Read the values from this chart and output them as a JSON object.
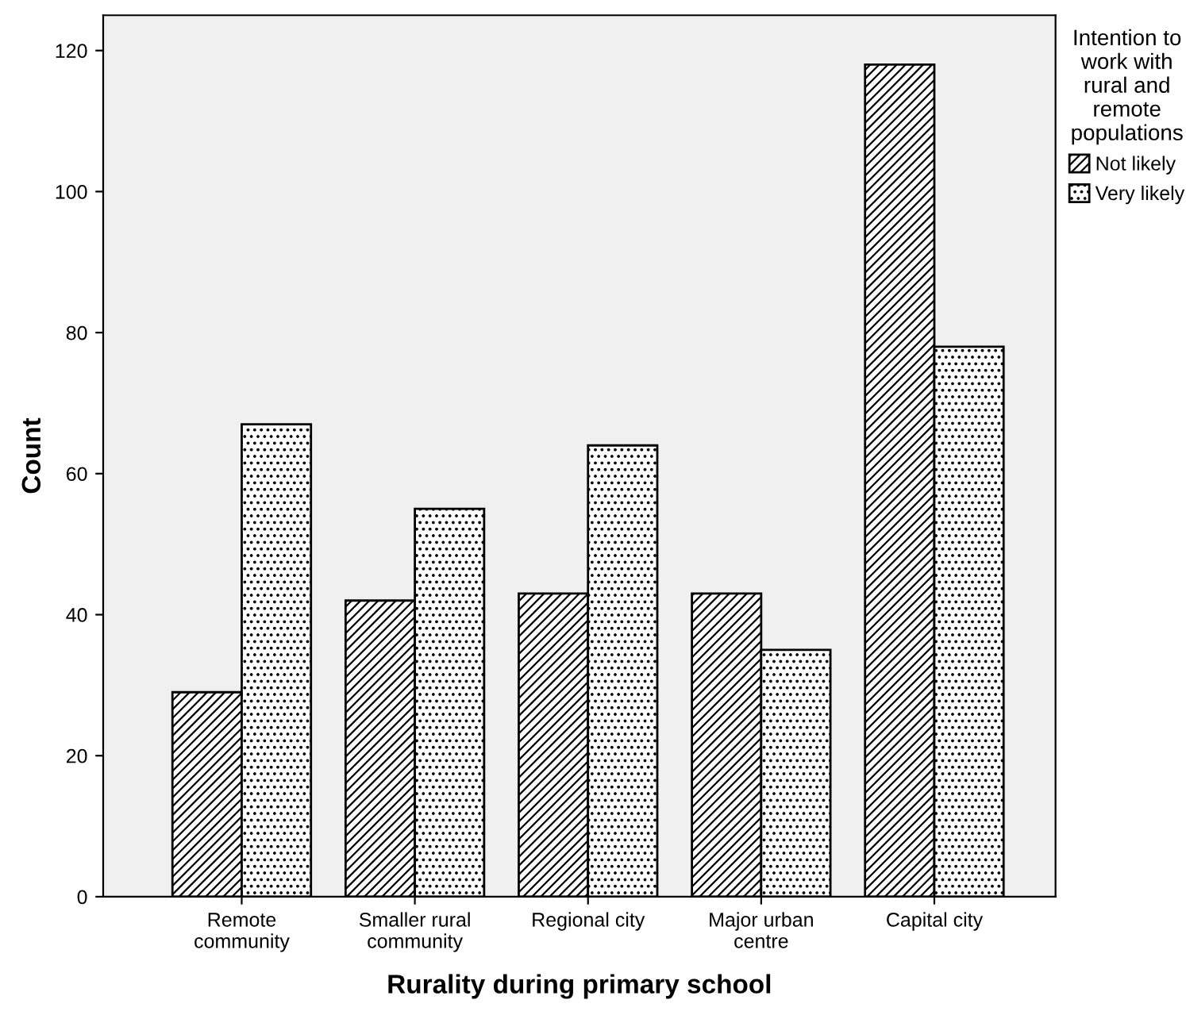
{
  "chart_data": {
    "type": "bar",
    "xlabel": "Rurality during primary school",
    "ylabel": "Count",
    "legend_title": "Intention to\nwork with\nrural and\nremote\npopulations",
    "legend": "top right",
    "grid": false,
    "categories": [
      "Remote\ncommunity",
      "Smaller rural\ncommunity",
      "Regional city",
      "Major urban\ncentre",
      "Capital city"
    ],
    "series": [
      {
        "name": "Not likely",
        "color": "#000000",
        "values": [
          29,
          42,
          43,
          43,
          118
        ]
      },
      {
        "name": "Very likely",
        "color": "#000000",
        "values": [
          67,
          55,
          64,
          35,
          78
        ]
      }
    ],
    "ylim": [
      0,
      125
    ],
    "yticks": [
      0,
      20,
      40,
      60,
      80,
      100,
      120
    ]
  }
}
